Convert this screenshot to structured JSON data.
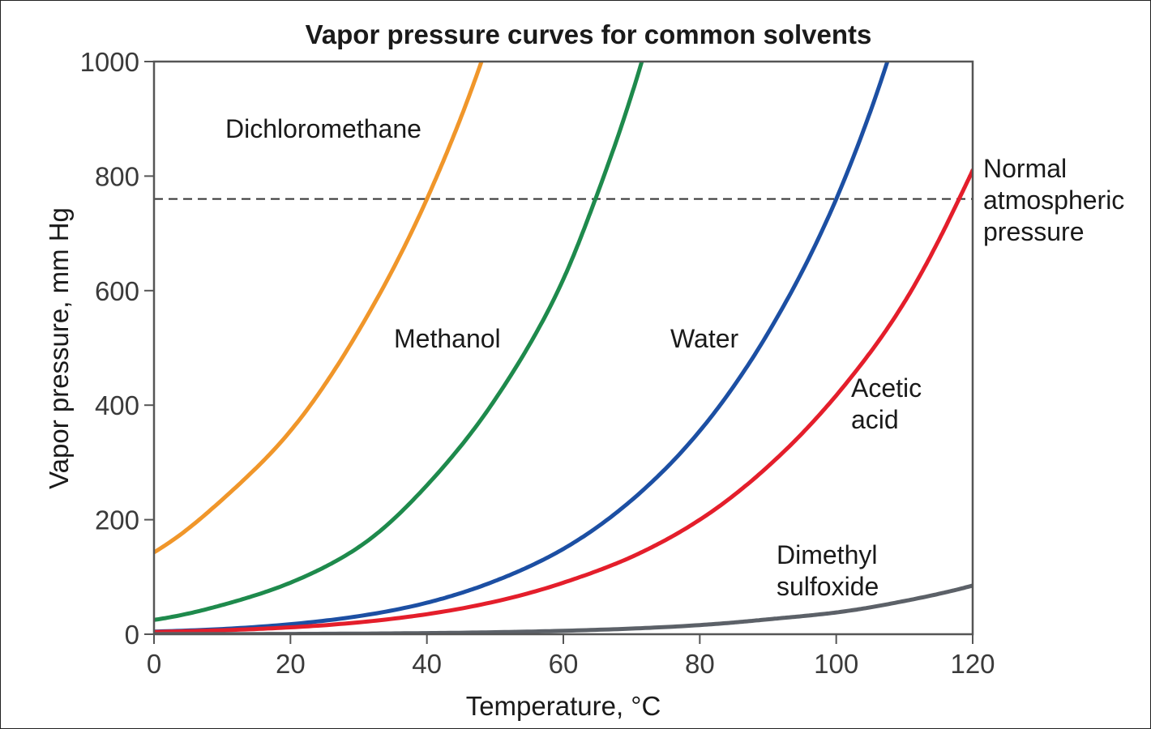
{
  "chart_data": {
    "type": "line",
    "title": "Vapor pressure curves for common solvents",
    "xlabel": "Temperature, °C",
    "ylabel": "Vapor pressure, mm Hg",
    "xlim": [
      0,
      120
    ],
    "ylim": [
      0,
      1000
    ],
    "xticks": [
      0,
      20,
      40,
      60,
      80,
      100,
      120
    ],
    "yticks": [
      0,
      200,
      400,
      600,
      800,
      1000
    ],
    "grid": false,
    "series": [
      {
        "name": "Dichloromethane",
        "color": "#f0962a",
        "label_lines": [
          "Dichloromethane"
        ],
        "x": [
          0,
          10,
          20,
          30,
          40,
          48
        ],
        "y": [
          143,
          235,
          355,
          530,
          760,
          1000
        ]
      },
      {
        "name": "Methanol",
        "color": "#1e8a4c",
        "label_lines": [
          "Methanol"
        ],
        "x": [
          0,
          10,
          20,
          30,
          40,
          50,
          60,
          64.7,
          71.5
        ],
        "y": [
          25,
          51,
          90,
          152,
          260,
          410,
          620,
          760,
          1000
        ]
      },
      {
        "name": "Water",
        "color": "#1c4fa3",
        "label_lines": [
          "Water"
        ],
        "x": [
          0,
          20,
          40,
          50,
          60,
          70,
          80,
          90,
          100,
          107.5
        ],
        "y": [
          4.6,
          17.5,
          55,
          93,
          149,
          234,
          355,
          526,
          760,
          1000
        ]
      },
      {
        "name": "Acetic acid",
        "color": "#e41e2b",
        "label_lines": [
          "Acetic",
          "acid"
        ],
        "x": [
          0,
          20,
          40,
          60,
          70,
          80,
          90,
          100,
          110,
          118,
          120
        ],
        "y": [
          4,
          12,
          35,
          90,
          135,
          200,
          293,
          417,
          580,
          760,
          810
        ]
      },
      {
        "name": "Dimethyl sulfoxide",
        "color": "#5c6168",
        "label_lines": [
          "Dimethyl",
          "sulfoxide"
        ],
        "x": [
          0,
          20,
          40,
          60,
          80,
          90,
          100,
          110,
          120
        ],
        "y": [
          0.2,
          0.6,
          2,
          6,
          16,
          26,
          38,
          58,
          85
        ]
      }
    ],
    "reference_line": {
      "y": 760,
      "style": "dashed",
      "label_lines": [
        "Normal",
        "atmospheric",
        "pressure"
      ]
    }
  }
}
